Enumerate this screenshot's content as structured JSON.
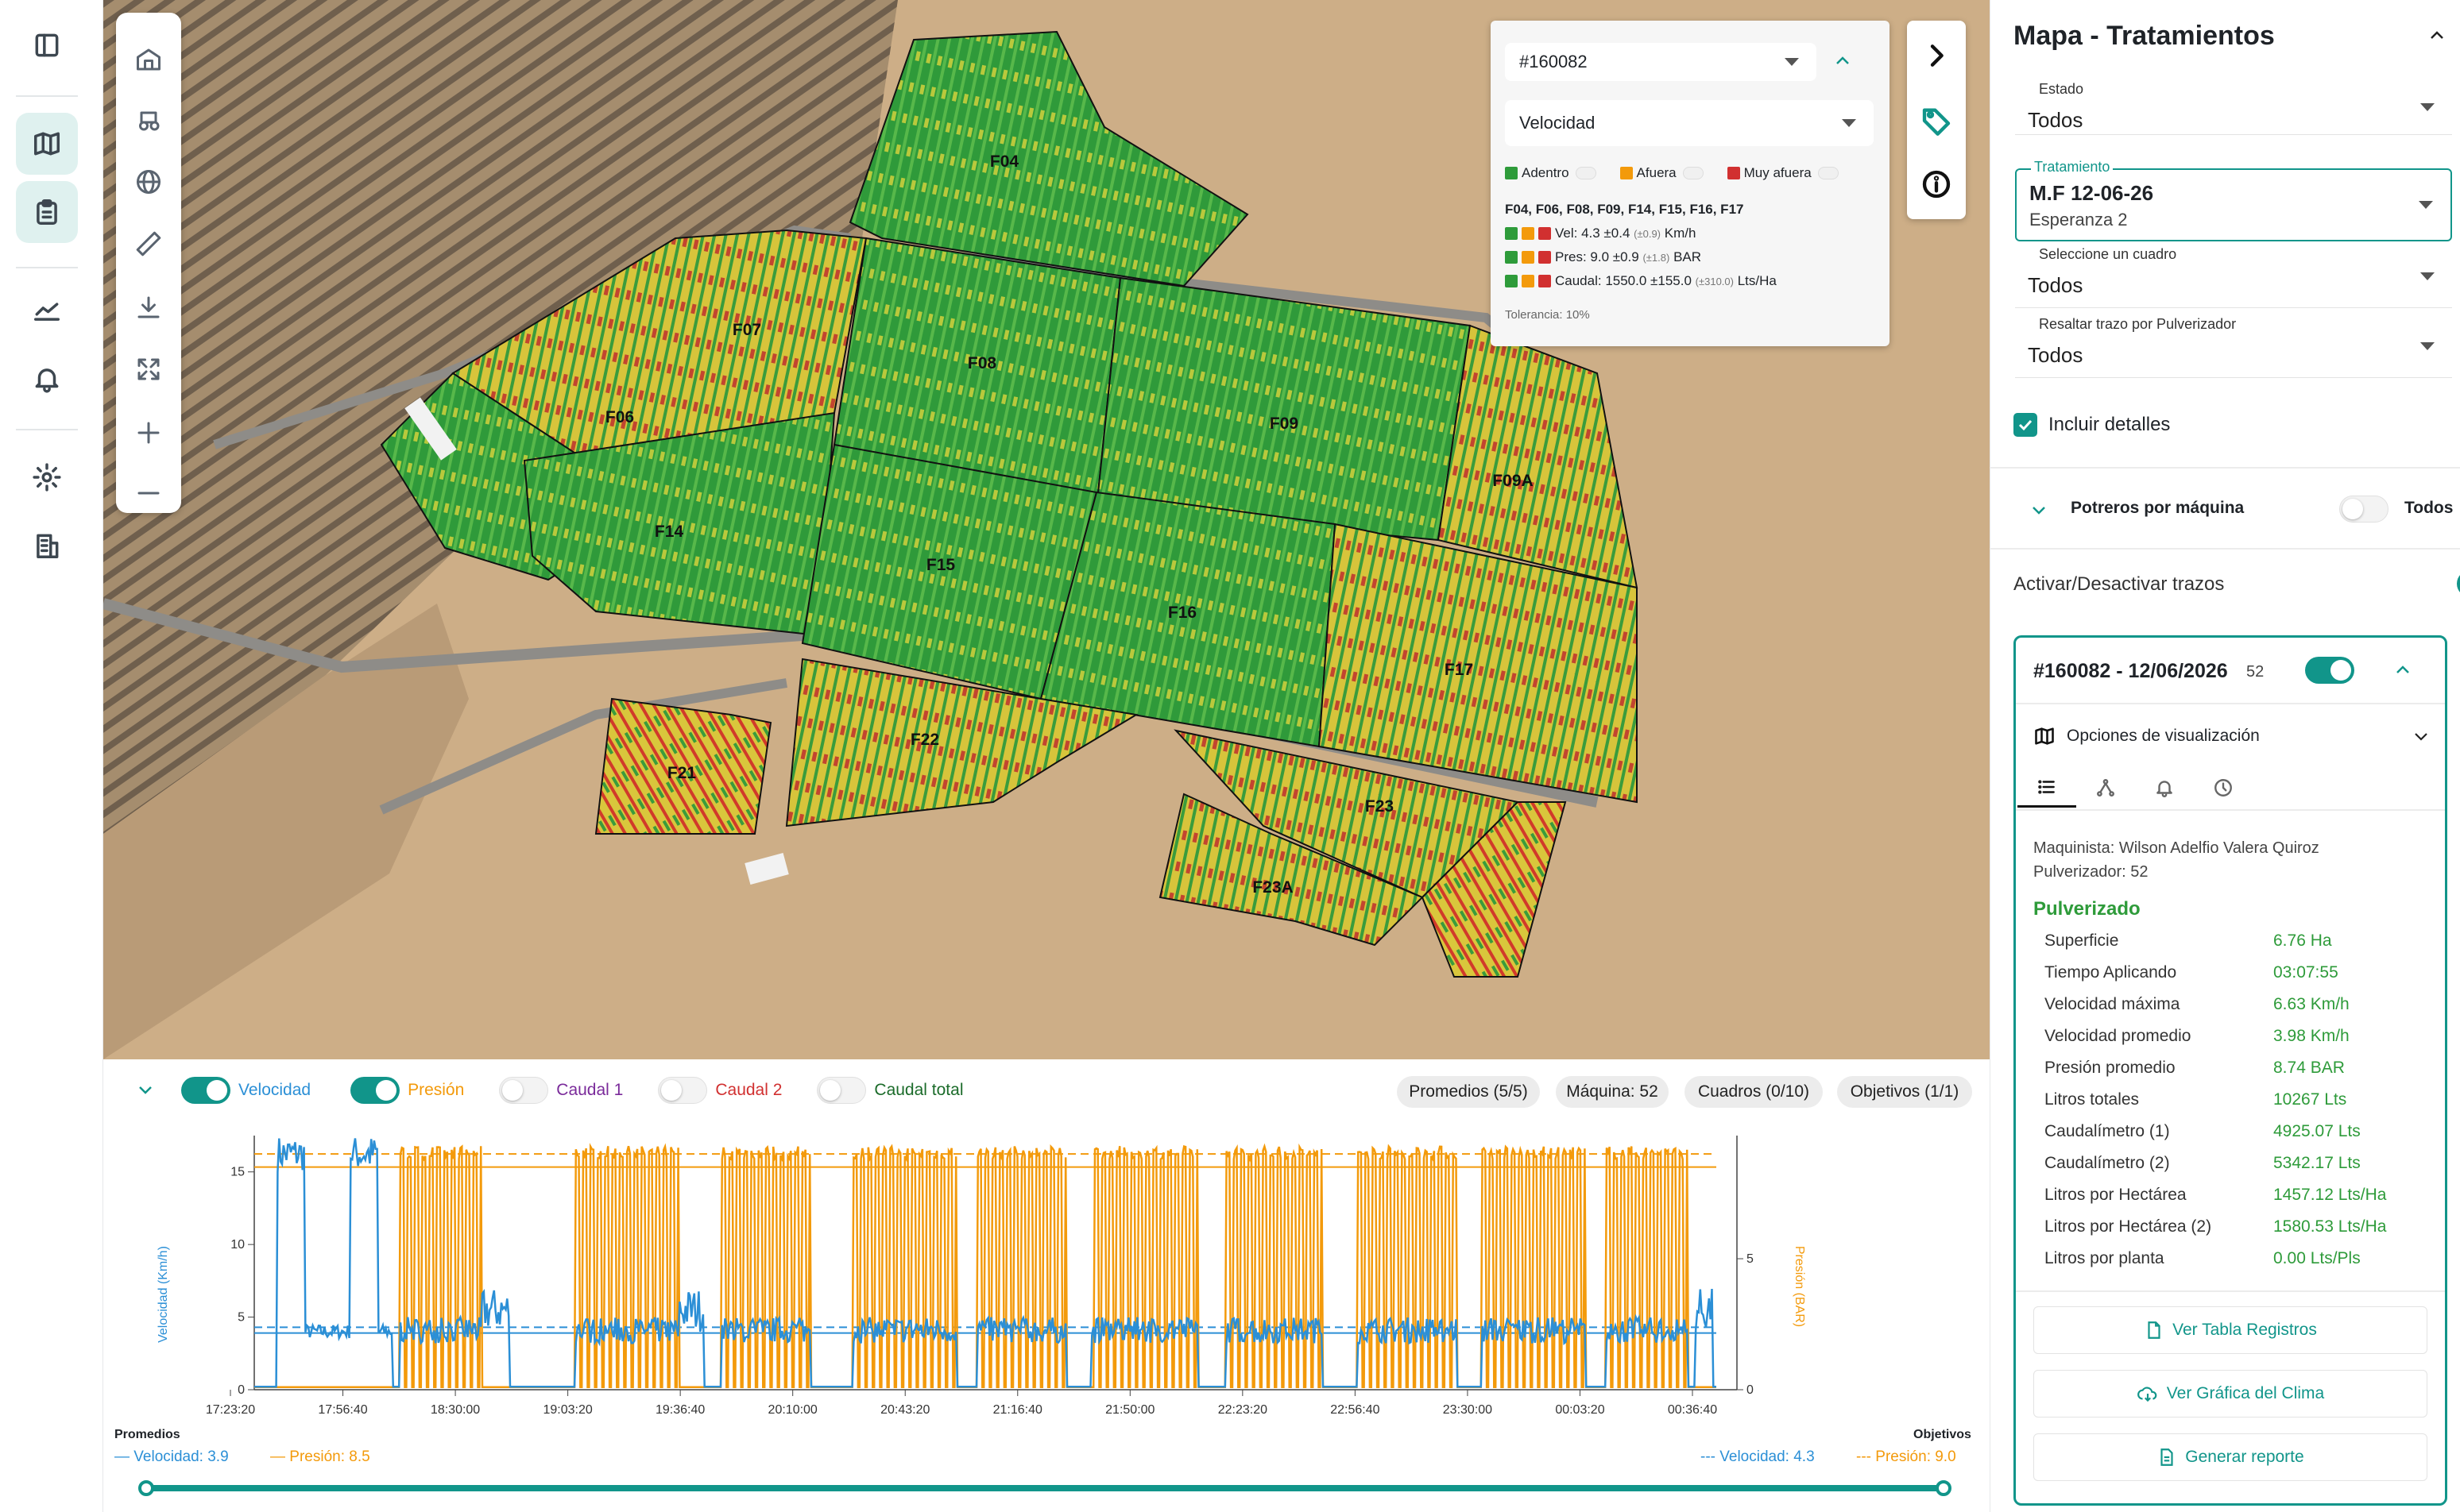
{
  "nav": {
    "items": [
      "panel-toggle",
      "map",
      "clipboard",
      "chart",
      "bell",
      "settings",
      "building"
    ]
  },
  "map": {
    "field_labels": [
      "F04",
      "F06",
      "F07",
      "F08",
      "F09",
      "F09A",
      "F14",
      "F15",
      "F16",
      "F17",
      "F21",
      "F22",
      "F23",
      "F23A"
    ]
  },
  "legend_panel": {
    "machine_select": "#160082",
    "metric_select": "Velocidad",
    "status_adentro": "Adentro",
    "status_afuera": "Afuera",
    "status_muy_afuera": "Muy afuera",
    "fields_line": "F04, F06, F08, F09, F14, F15, F16, F17",
    "vel_text": "Vel: 4.3 ±0.4",
    "vel_tol": "(±0.9)",
    "vel_unit": "Km/h",
    "pres_text": "Pres: 9.0 ±0.9",
    "pres_tol": "(±1.8)",
    "pres_unit": "BAR",
    "caudal_text": "Caudal: 1550.0 ±155.0",
    "caudal_tol": "(±310.0)",
    "caudal_unit": "Lts/Ha",
    "tolerancia": "Tolerancia: 10%"
  },
  "chart_toolbar": {
    "velocidad": "Velocidad",
    "presion": "Presión",
    "caudal1": "Caudal 1",
    "caudal2": "Caudal 2",
    "caudal_total": "Caudal total",
    "promedios_pill": "Promedios (5/5)",
    "maquina_pill": "Máquina: 52",
    "cuadros_pill": "Cuadros (0/10)",
    "objetivos_pill": "Objetivos (1/1)"
  },
  "chart_data": {
    "type": "line",
    "ylabel": "Velocidad (Km/h)",
    "y2label": "Presión (BAR)",
    "ylim": [
      0,
      17.5
    ],
    "y2lim": [
      0,
      9.7
    ],
    "yticks": [
      "0",
      "5",
      "10",
      "15"
    ],
    "y2ticks": [
      "0",
      "5"
    ],
    "x_ticks": [
      "17:23:20",
      "17:56:40",
      "18:30:00",
      "19:03:20",
      "19:36:40",
      "20:10:00",
      "20:43:20",
      "21:16:40",
      "21:50:00",
      "22:23:20",
      "22:56:40",
      "23:30:00",
      "00:03:20",
      "00:36:40"
    ],
    "series": [
      {
        "name": "Velocidad",
        "color": "#2b8fd6",
        "average": 3.9,
        "objective": 4.3
      },
      {
        "name": "Presión",
        "color": "#f39a0b",
        "average": 8.5,
        "objective": 9.0
      }
    ],
    "legend_left_title": "Promedios",
    "legend_left_vel": "Velocidad: 3.9",
    "legend_left_pres": "Presión: 8.5",
    "legend_right_title": "Objetivos",
    "legend_right_vel": "Velocidad: 4.3",
    "legend_right_pres": "Presión: 9.0"
  },
  "right_panel": {
    "title": "Mapa - Tratamientos",
    "estado_label": "Estado",
    "estado_value": "Todos",
    "tratamiento_label": "Tratamiento",
    "tratamiento_value": "M.F 12-06-26",
    "tratamiento_sub": "Esperanza 2",
    "cuadro_label": "Seleccione un cuadro",
    "cuadro_value": "Todos",
    "resaltar_label": "Resaltar trazo por Pulverizador",
    "resaltar_value": "Todos",
    "incluir_detalles": "Incluir detalles",
    "potreros": "Potreros por máquina",
    "potreros_todos": "Todos",
    "activar": "Activar/Desactivar trazos",
    "card_title": "#160082 - 12/06/2026",
    "card_count": "52",
    "opciones": "Opciones de visualización",
    "maquinista": "Maquinista: Wilson Adelfio Valera Quiroz",
    "pulverizador": "Pulverizador: 52",
    "pulverizado": "Pulverizado",
    "stats": [
      {
        "label": "Superficie",
        "value": "6.76 Ha"
      },
      {
        "label": "Tiempo Aplicando",
        "value": "03:07:55"
      },
      {
        "label": "Velocidad máxima",
        "value": "6.63 Km/h"
      },
      {
        "label": "Velocidad promedio",
        "value": "3.98 Km/h"
      },
      {
        "label": "Presión promedio",
        "value": "8.74 BAR"
      },
      {
        "label": "Litros totales",
        "value": "10267 Lts"
      },
      {
        "label": "Caudalímetro (1)",
        "value": "4925.07 Lts"
      },
      {
        "label": "Caudalímetro (2)",
        "value": "5342.17 Lts"
      },
      {
        "label": "Litros por Hectárea",
        "value": "1457.12 Lts/Ha"
      },
      {
        "label": "Litros por Hectárea (2)",
        "value": "1580.53 Lts/Ha"
      },
      {
        "label": "Litros por planta",
        "value": "0.00 Lts/Pls"
      }
    ],
    "btn_tabla": "Ver Tabla Registros",
    "btn_clima": "Ver Gráfica del Clima",
    "btn_reporte": "Generar reporte"
  },
  "colors": {
    "accent": "#11958a",
    "green": "#2e9b3a",
    "yellow": "#e6c83a",
    "red": "#d13030",
    "velocity": "#2b8fd6",
    "pressure": "#f39a0b"
  }
}
